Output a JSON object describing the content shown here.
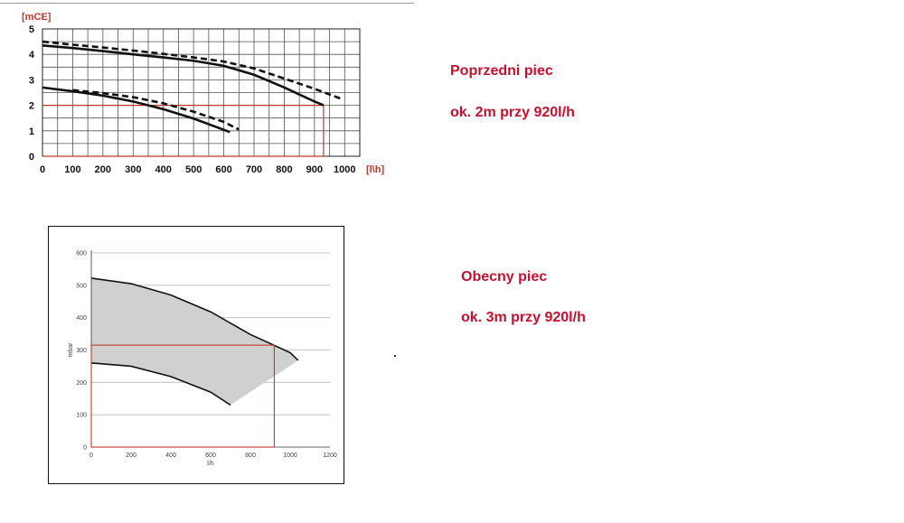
{
  "annotations": {
    "previous_title": "Poprzedni piec",
    "previous_value": "ok. 2m przy 920l/h",
    "current_title": "Obecny piec",
    "current_value": "ok. 3m przy 920l/h"
  },
  "colors": {
    "accent": "#c8102e",
    "marker": "#c0392b",
    "band": "#d0d0d0"
  },
  "chart_data": [
    {
      "type": "line",
      "title": "",
      "xlabel": "[l\\h]",
      "ylabel": "[mCE]",
      "xlim": [
        0,
        1050
      ],
      "ylim": [
        0,
        5
      ],
      "xticks": [
        0,
        100,
        200,
        300,
        400,
        500,
        600,
        700,
        800,
        900,
        1000
      ],
      "yticks": [
        0,
        1,
        2,
        3,
        4,
        5
      ],
      "grid": true,
      "series": [
        {
          "style": "solid",
          "x": [
            0,
            100,
            200,
            300,
            400,
            500,
            600,
            700,
            800,
            900,
            930
          ],
          "y": [
            4.35,
            4.25,
            4.13,
            4.0,
            3.88,
            3.75,
            3.55,
            3.2,
            2.7,
            2.15,
            2.0
          ]
        },
        {
          "style": "dashed",
          "x": [
            0,
            100,
            200,
            300,
            400,
            500,
            600,
            700,
            800,
            900,
            990
          ],
          "y": [
            4.5,
            4.38,
            4.27,
            4.15,
            4.02,
            3.88,
            3.72,
            3.45,
            3.05,
            2.65,
            2.25
          ]
        },
        {
          "style": "solid",
          "x": [
            0,
            100,
            200,
            300,
            400,
            500,
            620
          ],
          "y": [
            2.7,
            2.55,
            2.38,
            2.15,
            1.85,
            1.48,
            0.95
          ]
        },
        {
          "style": "dashed",
          "x": [
            100,
            200,
            300,
            400,
            500,
            600,
            650
          ],
          "y": [
            2.6,
            2.48,
            2.32,
            2.08,
            1.75,
            1.35,
            1.05
          ]
        }
      ],
      "marker": {
        "x": 930,
        "y": 2.0
      }
    },
    {
      "type": "area",
      "title": "",
      "xlabel": "l/h",
      "ylabel": "mbar",
      "xlim": [
        0,
        1200
      ],
      "ylim": [
        0,
        600
      ],
      "xticks": [
        0,
        200,
        400,
        600,
        800,
        1000,
        1200
      ],
      "yticks": [
        0,
        100,
        200,
        300,
        400,
        500,
        600
      ],
      "grid": true,
      "series": [
        {
          "name": "",
          "x": [
            0,
            200,
            400,
            600,
            800,
            1000,
            1040
          ],
          "y": [
            522,
            505,
            470,
            418,
            348,
            292,
            268
          ]
        },
        {
          "name": "",
          "x": [
            0,
            200,
            400,
            600,
            700
          ],
          "y": [
            260,
            250,
            218,
            170,
            130
          ]
        }
      ],
      "marker": {
        "x": 920,
        "y": 315
      }
    }
  ]
}
